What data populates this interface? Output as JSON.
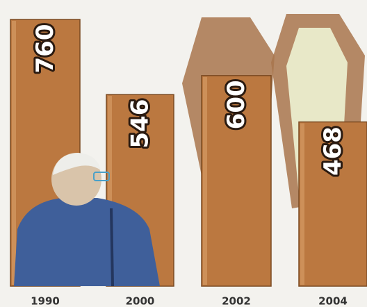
{
  "chart_data": {
    "type": "bar",
    "categories": [
      "1990",
      "2000",
      "2002",
      "2004"
    ],
    "values": [
      760,
      546,
      600,
      468
    ],
    "color": "#bb7840"
  }
}
